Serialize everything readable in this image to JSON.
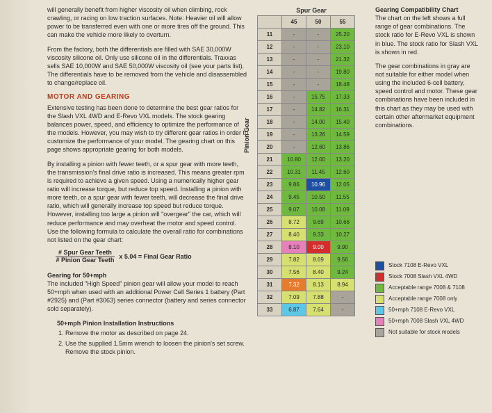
{
  "colors": {
    "erevo_stock": "#1d4fa3",
    "slash_stock": "#d22e2e",
    "acceptable_both": "#6fb93f",
    "acceptable_7008": "#d6e070",
    "fifty_erevo": "#5dc7e8",
    "fifty_slash": "#e77fbb",
    "not_suitable": "#a8a49a",
    "orange": "#e67a2d",
    "header_bg": "#d8d2c2"
  },
  "left": {
    "p1": "will generally benefit from higher viscosity oil when climbing, rock crawling, or racing on low traction surfaces. Note: Heavier oil will allow power to be transferred even with one or more tires off the ground. This can make the vehicle more likely to overturn.",
    "p2": "From the factory, both the differentials are filled with SAE 30,000W viscosity silicone oil. Only use silicone oil in the differentials. Traxxas sells SAE 10,000W and SAE 50,000W viscosity oil (see your parts list). The differentials have to be removed from the vehicle and disassembled to change/replace oil.",
    "sec_title": "MOTOR AND GEARING",
    "p3": "Extensive testing has been done to determine the best gear ratios for the Slash VXL 4WD and E-Revo VXL models. The stock gearing balances power, speed, and efficiency to optimize the performance of the models. However, you may wish to try different gear ratios in order to customize the performance of your model. The gearing chart on this page shows appropriate gearing for both models.",
    "p4": "By installing a pinion with fewer teeth, or a spur gear with more teeth, the transmission's final drive ratio is increased. This means greater rpm is required to achieve a given speed. Using a numerically higher gear ratio will increase torque, but reduce top speed. Installing a pinion with more teeth, or a spur gear with fewer teeth, will decrease the final drive ratio, which will generally increase top speed but reduce torque. However, installing too large a pinion will \"overgear\" the car, which will reduce performance and may overheat the motor and speed control. Use the following formula to calculate the overall ratio for combinations not listed on the gear chart:",
    "formula_num": "# Spur Gear Teeth",
    "formula_den": "# Pinion Gear Teeth",
    "formula_rest": "x 5.04 = Final Gear Ratio",
    "gearing50_head": "Gearing for 50+mph",
    "p5": "The included \"High Speed\" pinion gear will allow your model to reach 50+mph when used with an additional Power Cell Series 1 battery (Part #2925) and (Part #3063) series connector (battery and series connector sold separately).",
    "install_head": "50+mph Pinion Installation Instructions",
    "step1": "Remove the motor as described on page 24.",
    "step2": "Use the supplied 1.5mm wrench to loosen the pinion's set screw. Remove the stock pinion."
  },
  "chart": {
    "top_label": "Spur Gear",
    "left_label": "Pinion Gear",
    "cols": [
      "45",
      "50",
      "55"
    ],
    "rows": [
      {
        "p": "11",
        "c": [
          {
            "v": "-",
            "k": "not_suitable"
          },
          {
            "v": "-",
            "k": "not_suitable"
          },
          {
            "v": "25.20",
            "k": "acceptable_both"
          }
        ]
      },
      {
        "p": "12",
        "c": [
          {
            "v": "-",
            "k": "not_suitable"
          },
          {
            "v": "-",
            "k": "not_suitable"
          },
          {
            "v": "23.10",
            "k": "acceptable_both"
          }
        ]
      },
      {
        "p": "13",
        "c": [
          {
            "v": "-",
            "k": "not_suitable"
          },
          {
            "v": "-",
            "k": "not_suitable"
          },
          {
            "v": "21.32",
            "k": "acceptable_both"
          }
        ]
      },
      {
        "p": "14",
        "c": [
          {
            "v": "-",
            "k": "not_suitable"
          },
          {
            "v": "-",
            "k": "not_suitable"
          },
          {
            "v": "19.80",
            "k": "acceptable_both"
          }
        ]
      },
      {
        "p": "15",
        "c": [
          {
            "v": "-",
            "k": "not_suitable"
          },
          {
            "v": "-",
            "k": "not_suitable"
          },
          {
            "v": "18.48",
            "k": "acceptable_both"
          }
        ]
      },
      {
        "p": "16",
        "c": [
          {
            "v": "-",
            "k": "not_suitable"
          },
          {
            "v": "15.75",
            "k": "acceptable_both"
          },
          {
            "v": "17.33",
            "k": "acceptable_both"
          }
        ]
      },
      {
        "p": "17",
        "c": [
          {
            "v": "-",
            "k": "not_suitable"
          },
          {
            "v": "14.82",
            "k": "acceptable_both"
          },
          {
            "v": "16.31",
            "k": "acceptable_both"
          }
        ]
      },
      {
        "p": "18",
        "c": [
          {
            "v": "-",
            "k": "not_suitable"
          },
          {
            "v": "14.00",
            "k": "acceptable_both"
          },
          {
            "v": "15.40",
            "k": "acceptable_both"
          }
        ]
      },
      {
        "p": "19",
        "c": [
          {
            "v": "-",
            "k": "not_suitable"
          },
          {
            "v": "13.26",
            "k": "acceptable_both"
          },
          {
            "v": "14.59",
            "k": "acceptable_both"
          }
        ]
      },
      {
        "p": "20",
        "c": [
          {
            "v": "-",
            "k": "not_suitable"
          },
          {
            "v": "12.60",
            "k": "acceptable_both"
          },
          {
            "v": "13.86",
            "k": "acceptable_both"
          }
        ]
      },
      {
        "p": "21",
        "c": [
          {
            "v": "10.80",
            "k": "acceptable_both"
          },
          {
            "v": "12.00",
            "k": "acceptable_both"
          },
          {
            "v": "13.20",
            "k": "acceptable_both"
          }
        ]
      },
      {
        "p": "22",
        "c": [
          {
            "v": "10.31",
            "k": "acceptable_both"
          },
          {
            "v": "11.45",
            "k": "acceptable_both"
          },
          {
            "v": "12.60",
            "k": "acceptable_both"
          }
        ]
      },
      {
        "p": "23",
        "c": [
          {
            "v": "9.86",
            "k": "acceptable_both"
          },
          {
            "v": "10.96",
            "k": "erevo_stock"
          },
          {
            "v": "12.05",
            "k": "acceptable_both"
          }
        ]
      },
      {
        "p": "24",
        "c": [
          {
            "v": "9.45",
            "k": "acceptable_both"
          },
          {
            "v": "10.50",
            "k": "acceptable_both"
          },
          {
            "v": "11.55",
            "k": "acceptable_both"
          }
        ]
      },
      {
        "p": "25",
        "c": [
          {
            "v": "9.07",
            "k": "acceptable_both"
          },
          {
            "v": "10.08",
            "k": "acceptable_both"
          },
          {
            "v": "11.09",
            "k": "acceptable_both"
          }
        ]
      },
      {
        "p": "26",
        "c": [
          {
            "v": "8.72",
            "k": "acceptable_7008"
          },
          {
            "v": "9.69",
            "k": "acceptable_both"
          },
          {
            "v": "10.66",
            "k": "acceptable_both"
          }
        ]
      },
      {
        "p": "27",
        "c": [
          {
            "v": "8.40",
            "k": "acceptable_7008"
          },
          {
            "v": "9.33",
            "k": "acceptable_both"
          },
          {
            "v": "10.27",
            "k": "acceptable_both"
          }
        ]
      },
      {
        "p": "28",
        "c": [
          {
            "v": "8.10",
            "k": "fifty_slash"
          },
          {
            "v": "9.00",
            "k": "slash_stock"
          },
          {
            "v": "9.90",
            "k": "acceptable_both"
          }
        ]
      },
      {
        "p": "29",
        "c": [
          {
            "v": "7.82",
            "k": "acceptable_7008"
          },
          {
            "v": "8.69",
            "k": "acceptable_7008"
          },
          {
            "v": "9.56",
            "k": "acceptable_both"
          }
        ]
      },
      {
        "p": "30",
        "c": [
          {
            "v": "7.56",
            "k": "acceptable_7008"
          },
          {
            "v": "8.40",
            "k": "acceptable_7008"
          },
          {
            "v": "9.24",
            "k": "acceptable_both"
          }
        ]
      },
      {
        "p": "31",
        "c": [
          {
            "v": "7.32",
            "k": "orange"
          },
          {
            "v": "8.13",
            "k": "acceptable_7008"
          },
          {
            "v": "8.94",
            "k": "acceptable_7008"
          }
        ]
      },
      {
        "p": "32",
        "c": [
          {
            "v": "7.09",
            "k": "acceptable_7008"
          },
          {
            "v": "7.88",
            "k": "acceptable_7008"
          },
          {
            "v": "-",
            "k": "not_suitable"
          }
        ]
      },
      {
        "p": "33",
        "c": [
          {
            "v": "6.87",
            "k": "fifty_erevo"
          },
          {
            "v": "7.64",
            "k": "acceptable_7008"
          },
          {
            "v": "-",
            "k": "not_suitable"
          }
        ]
      }
    ]
  },
  "right": {
    "title": "Gearing Compatibility Chart",
    "p1": "The chart on the left shows a full range of gear combinations. The stock ratio for E-Revo VXL is shown in blue. The stock ratio for Slash VXL is shown in red.",
    "p2": "The gear combinations in gray are not suitable for either model when using the included 6-cell battery, speed control and motor. These gear combinations have been included in this chart as they may be used with certain other aftermarket equipment combinations."
  },
  "legend": [
    {
      "k": "erevo_stock",
      "t": "Stock 7108 E-Revo VXL"
    },
    {
      "k": "slash_stock",
      "t": "Stock 7008 Slash VXL 4WD"
    },
    {
      "k": "acceptable_both",
      "t": "Acceptable range 7008 & 7108"
    },
    {
      "k": "acceptable_7008",
      "t": "Acceptable range 7008 only"
    },
    {
      "k": "fifty_erevo",
      "t": "50+mph 7108 E-Revo VXL"
    },
    {
      "k": "fifty_slash",
      "t": "50+mph 7008 Slash VXL 4WD"
    },
    {
      "k": "not_suitable",
      "t": "Not suitable for stock models"
    }
  ]
}
